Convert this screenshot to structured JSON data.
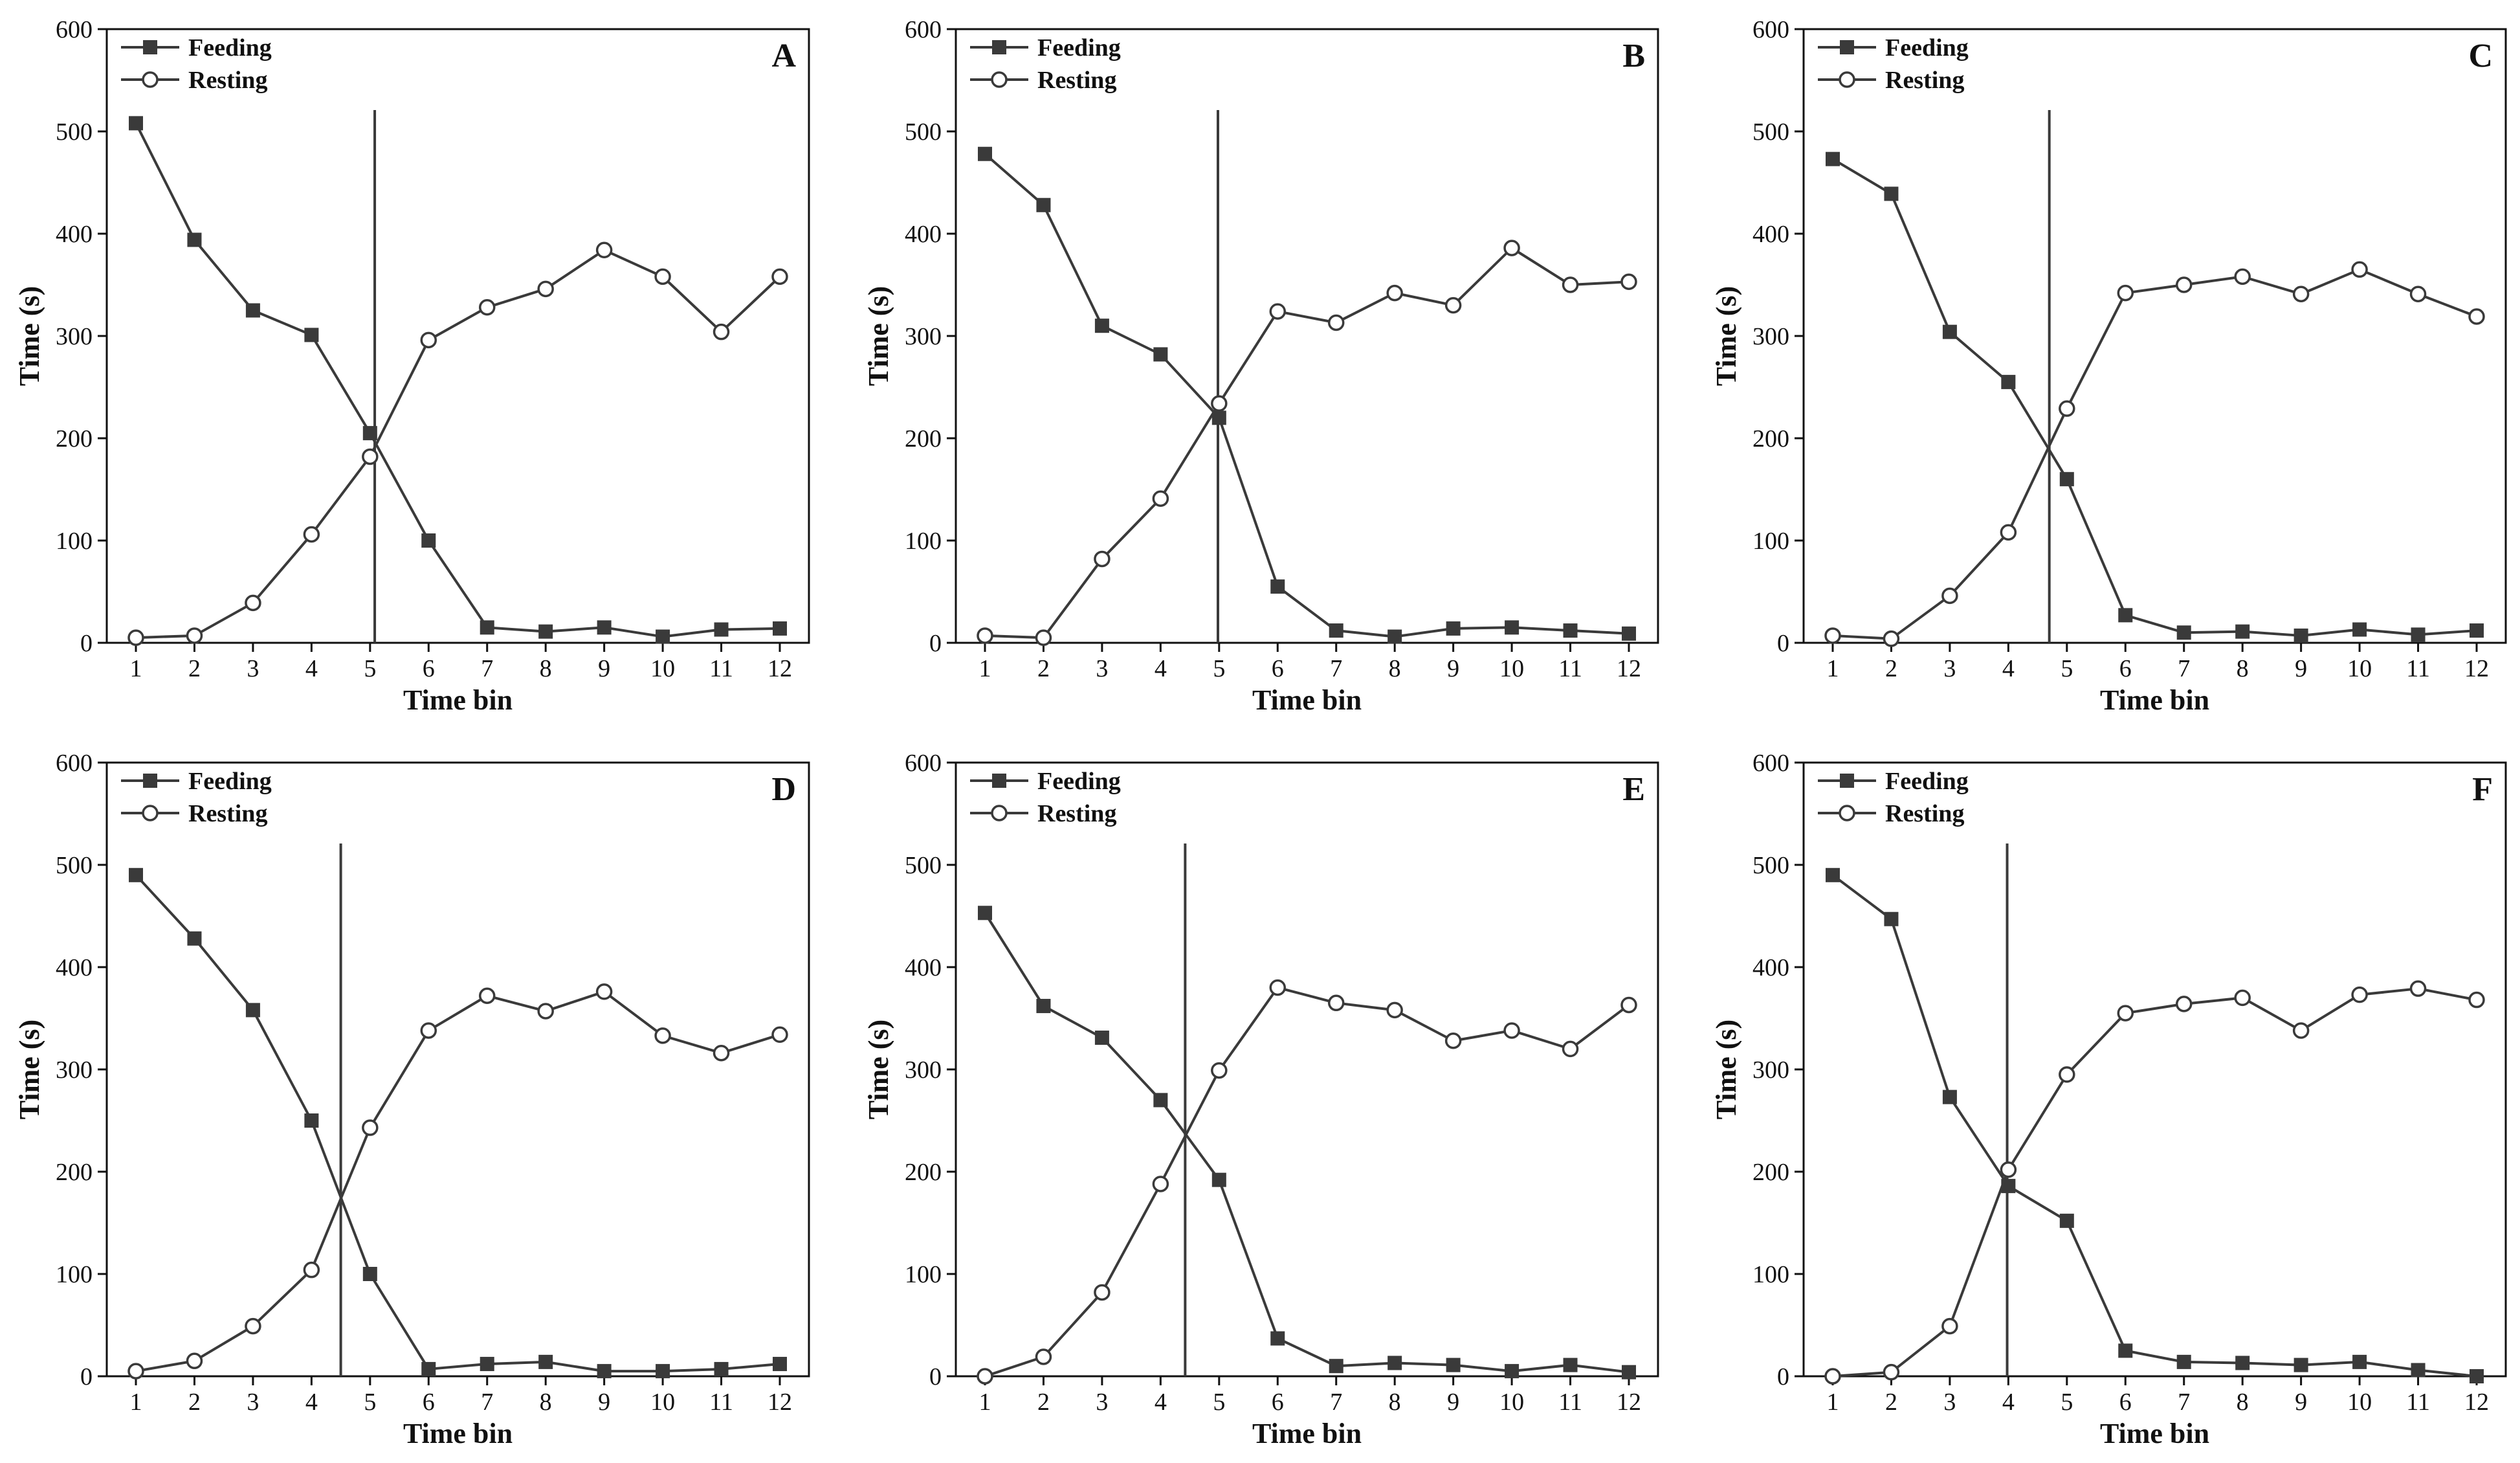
{
  "colors": {
    "line": "#3a3a3a",
    "marker_fill_feeding": "#3a3a3a",
    "marker_fill_resting": "#ffffff",
    "axis": "#111111",
    "text": "#111111"
  },
  "chart_data": [
    {
      "type": "line",
      "panel_label": "A",
      "xlabel": "Time bin",
      "ylabel": "Time (s)",
      "categories": [
        "1",
        "2",
        "3",
        "4",
        "5",
        "6",
        "7",
        "8",
        "9",
        "10",
        "11",
        "12"
      ],
      "ylim": [
        0,
        600
      ],
      "yticks": [
        "0",
        "100",
        "200",
        "300",
        "400",
        "500",
        "600"
      ],
      "legend_position": "top-left",
      "vline_x": 5.08,
      "series": [
        {
          "name": "Feeding",
          "marker": "filled-square",
          "values": [
            508,
            394,
            325,
            301,
            205,
            100,
            15,
            11,
            15,
            6,
            13,
            14
          ]
        },
        {
          "name": "Resting",
          "marker": "open-circle",
          "values": [
            5,
            7,
            39,
            106,
            182,
            296,
            328,
            346,
            384,
            358,
            304,
            358
          ]
        }
      ]
    },
    {
      "type": "line",
      "panel_label": "B",
      "xlabel": "Time bin",
      "ylabel": "Time (s)",
      "categories": [
        "1",
        "2",
        "3",
        "4",
        "5",
        "6",
        "7",
        "8",
        "9",
        "10",
        "11",
        "12"
      ],
      "ylim": [
        0,
        600
      ],
      "yticks": [
        "0",
        "100",
        "200",
        "300",
        "400",
        "500",
        "600"
      ],
      "legend_position": "top-left",
      "vline_x": 4.98,
      "series": [
        {
          "name": "Feeding",
          "marker": "filled-square",
          "values": [
            478,
            428,
            310,
            282,
            220,
            55,
            12,
            6,
            14,
            15,
            12,
            9
          ]
        },
        {
          "name": "Resting",
          "marker": "open-circle",
          "values": [
            7,
            5,
            82,
            141,
            234,
            324,
            313,
            342,
            330,
            386,
            350,
            353
          ]
        }
      ]
    },
    {
      "type": "line",
      "panel_label": "C",
      "xlabel": "Time bin",
      "ylabel": "Time (s)",
      "categories": [
        "1",
        "2",
        "3",
        "4",
        "5",
        "6",
        "7",
        "8",
        "9",
        "10",
        "11",
        "12"
      ],
      "ylim": [
        0,
        600
      ],
      "yticks": [
        "0",
        "100",
        "200",
        "300",
        "400",
        "500",
        "600"
      ],
      "legend_position": "top-left",
      "vline_x": 4.7,
      "series": [
        {
          "name": "Feeding",
          "marker": "filled-square",
          "values": [
            473,
            439,
            304,
            255,
            160,
            27,
            10,
            11,
            7,
            13,
            8,
            12
          ]
        },
        {
          "name": "Resting",
          "marker": "open-circle",
          "values": [
            7,
            4,
            46,
            108,
            229,
            342,
            350,
            358,
            341,
            365,
            341,
            319
          ]
        }
      ]
    },
    {
      "type": "line",
      "panel_label": "D",
      "xlabel": "Time bin",
      "ylabel": "Time (s)",
      "categories": [
        "1",
        "2",
        "3",
        "4",
        "5",
        "6",
        "7",
        "8",
        "9",
        "10",
        "11",
        "12"
      ],
      "ylim": [
        0,
        600
      ],
      "yticks": [
        "0",
        "100",
        "200",
        "300",
        "400",
        "500",
        "600"
      ],
      "legend_position": "top-left",
      "vline_x": 4.5,
      "series": [
        {
          "name": "Feeding",
          "marker": "filled-square",
          "values": [
            490,
            428,
            358,
            250,
            100,
            7,
            12,
            14,
            5,
            5,
            7,
            12
          ]
        },
        {
          "name": "Resting",
          "marker": "open-circle",
          "values": [
            5,
            15,
            49,
            104,
            243,
            338,
            372,
            357,
            376,
            333,
            316,
            334
          ]
        }
      ]
    },
    {
      "type": "line",
      "panel_label": "E",
      "xlabel": "Time bin",
      "ylabel": "Time (s)",
      "categories": [
        "1",
        "2",
        "3",
        "4",
        "5",
        "6",
        "7",
        "8",
        "9",
        "10",
        "11",
        "12"
      ],
      "ylim": [
        0,
        600
      ],
      "yticks": [
        "0",
        "100",
        "200",
        "300",
        "400",
        "500",
        "600"
      ],
      "legend_position": "top-left",
      "vline_x": 4.42,
      "series": [
        {
          "name": "Feeding",
          "marker": "filled-square",
          "values": [
            453,
            362,
            331,
            270,
            192,
            37,
            10,
            13,
            11,
            5,
            11,
            4
          ]
        },
        {
          "name": "Resting",
          "marker": "open-circle",
          "values": [
            0,
            19,
            82,
            188,
            299,
            380,
            365,
            358,
            328,
            338,
            320,
            363
          ]
        }
      ]
    },
    {
      "type": "line",
      "panel_label": "F",
      "xlabel": "Time bin",
      "ylabel": "Time (s)",
      "categories": [
        "1",
        "2",
        "3",
        "4",
        "5",
        "6",
        "7",
        "8",
        "9",
        "10",
        "11",
        "12"
      ],
      "ylim": [
        0,
        600
      ],
      "yticks": [
        "0",
        "100",
        "200",
        "300",
        "400",
        "500",
        "600"
      ],
      "legend_position": "top-left",
      "vline_x": 3.98,
      "series": [
        {
          "name": "Feeding",
          "marker": "filled-square",
          "values": [
            490,
            447,
            273,
            186,
            152,
            25,
            14,
            13,
            11,
            14,
            6,
            0
          ]
        },
        {
          "name": "Resting",
          "marker": "open-circle",
          "values": [
            0,
            4,
            49,
            202,
            295,
            355,
            364,
            370,
            338,
            373,
            379,
            368
          ]
        }
      ]
    }
  ]
}
